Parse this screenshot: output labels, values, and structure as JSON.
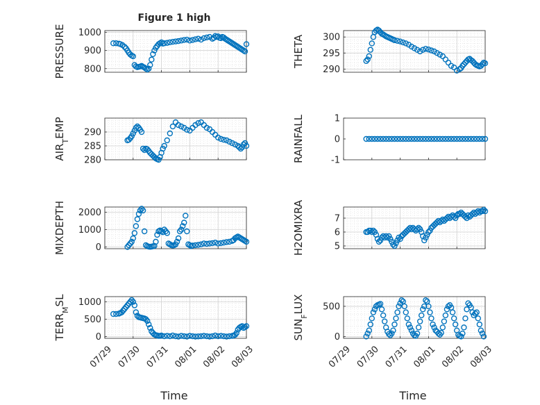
{
  "figure": {
    "title": "Figure 1 high",
    "xlabel": "Time",
    "marker_color": "#0072bd",
    "x_tick_labels": [
      "07/29",
      "07/30",
      "07/31",
      "08/01",
      "08/02",
      "08/03"
    ]
  },
  "chart_data": [
    {
      "type": "scatter",
      "ylabel": "PRESSURE",
      "ylim": [
        780,
        1010
      ],
      "yticks": [
        800,
        900,
        1000
      ],
      "xlim": [
        0,
        5
      ],
      "grid": true,
      "x": [
        0.3,
        0.4,
        0.5,
        0.55,
        0.62,
        0.7,
        0.75,
        0.8,
        0.85,
        0.9,
        0.95,
        1.0,
        1.05,
        1.1,
        1.15,
        1.2,
        1.25,
        1.3,
        1.35,
        1.4,
        1.45,
        1.5,
        1.55,
        1.6,
        1.65,
        1.7,
        1.75,
        1.8,
        1.85,
        1.9,
        1.95,
        2.0,
        2.05,
        2.1,
        2.2,
        2.3,
        2.4,
        2.5,
        2.6,
        2.7,
        2.8,
        2.9,
        3.0,
        3.1,
        3.2,
        3.3,
        3.4,
        3.5,
        3.6,
        3.7,
        3.8,
        3.85,
        3.9,
        3.95,
        4.0,
        4.05,
        4.1,
        4.15,
        4.2,
        4.25,
        4.3,
        4.35,
        4.4,
        4.45,
        4.5,
        4.55,
        4.6,
        4.65,
        4.7,
        4.75,
        4.8,
        4.85,
        4.9,
        4.95,
        5.0
      ],
      "y": [
        940,
        940,
        938,
        935,
        930,
        920,
        912,
        900,
        888,
        878,
        872,
        868,
        820,
        812,
        808,
        810,
        812,
        815,
        810,
        806,
        800,
        795,
        800,
        820,
        850,
        880,
        900,
        915,
        925,
        935,
        940,
        945,
        938,
        940,
        942,
        945,
        948,
        950,
        952,
        955,
        958,
        960,
        955,
        958,
        962,
        965,
        960,
        968,
        972,
        975,
        965,
        970,
        980,
        975,
        978,
        970,
        968,
        975,
        972,
        965,
        960,
        955,
        950,
        945,
        940,
        935,
        930,
        925,
        920,
        915,
        910,
        905,
        900,
        895,
        935
      ]
    },
    {
      "type": "scatter",
      "ylabel": "THETA",
      "ylim": [
        289,
        302
      ],
      "yticks": [
        290,
        295,
        300
      ],
      "xlim": [
        0,
        5
      ],
      "grid": true,
      "x": [
        0.8,
        0.85,
        0.9,
        0.95,
        1.0,
        1.05,
        1.1,
        1.15,
        1.2,
        1.25,
        1.3,
        1.35,
        1.4,
        1.45,
        1.5,
        1.55,
        1.6,
        1.65,
        1.7,
        1.75,
        1.8,
        1.9,
        2.0,
        2.1,
        2.2,
        2.3,
        2.4,
        2.5,
        2.6,
        2.7,
        2.8,
        2.9,
        3.0,
        3.1,
        3.2,
        3.3,
        3.4,
        3.5,
        3.6,
        3.7,
        3.8,
        3.9,
        4.0,
        4.1,
        4.15,
        4.2,
        4.25,
        4.3,
        4.35,
        4.4,
        4.45,
        4.5,
        4.55,
        4.6,
        4.65,
        4.7,
        4.75,
        4.8,
        4.85,
        4.9,
        4.95,
        5.0
      ],
      "y": [
        292.5,
        293,
        294,
        296,
        298,
        300,
        301.5,
        302,
        302.3,
        302,
        301.5,
        301,
        300.8,
        300.5,
        300.2,
        300,
        299.8,
        299.6,
        299.4,
        299.2,
        299,
        298.8,
        298.6,
        298.3,
        298,
        297.6,
        297,
        296.5,
        296,
        295.5,
        296,
        296.3,
        296.1,
        295.8,
        295.5,
        295,
        294.5,
        294,
        293,
        292,
        291,
        290.5,
        289.5,
        290,
        290.3,
        291,
        291.5,
        292,
        292.5,
        293,
        293.2,
        292.8,
        292.5,
        292,
        291.5,
        291.2,
        291,
        290.8,
        291,
        291.5,
        292,
        291.8
      ]
    },
    {
      "type": "scatter",
      "ylabel": "AIR_TEMP",
      "ylim": [
        280,
        295
      ],
      "yticks": [
        280,
        285,
        290
      ],
      "xlim": [
        0,
        5
      ],
      "grid": true,
      "x": [
        0.8,
        0.85,
        0.9,
        0.95,
        1.0,
        1.05,
        1.1,
        1.15,
        1.2,
        1.25,
        1.3,
        1.35,
        1.4,
        1.45,
        1.5,
        1.55,
        1.6,
        1.65,
        1.7,
        1.75,
        1.8,
        1.85,
        1.9,
        1.95,
        2.0,
        2.05,
        2.1,
        2.2,
        2.3,
        2.4,
        2.5,
        2.6,
        2.7,
        2.8,
        2.9,
        3.0,
        3.1,
        3.2,
        3.3,
        3.4,
        3.5,
        3.6,
        3.7,
        3.8,
        3.9,
        4.0,
        4.1,
        4.2,
        4.3,
        4.4,
        4.5,
        4.6,
        4.7,
        4.75,
        4.8,
        4.85,
        4.9,
        4.95,
        5.0
      ],
      "y": [
        287,
        287.2,
        287.8,
        288.5,
        289.5,
        290.5,
        291.5,
        292,
        291.5,
        290.8,
        290,
        284,
        283.5,
        284,
        283.8,
        283.2,
        282.5,
        282,
        281.5,
        281,
        280.5,
        280.2,
        280,
        281,
        282.5,
        284,
        285,
        287,
        289.5,
        292,
        293.5,
        292.5,
        292,
        291.5,
        290.8,
        290.5,
        291.5,
        292.5,
        293.2,
        293.5,
        292.5,
        291.5,
        291,
        290,
        289,
        288,
        287.5,
        287.2,
        287,
        286.5,
        286,
        285.5,
        285,
        284.5,
        284,
        284.5,
        285.5,
        286,
        285
      ]
    },
    {
      "type": "scatter",
      "ylabel": "RAINFALL",
      "ylim": [
        -1,
        1
      ],
      "yticks": [
        -1,
        0,
        1
      ],
      "xlim": [
        0,
        5
      ],
      "grid": false,
      "x": [
        0.8,
        0.9,
        1.0,
        1.1,
        1.2,
        1.3,
        1.4,
        1.5,
        1.6,
        1.7,
        1.8,
        1.9,
        2.0,
        2.1,
        2.2,
        2.3,
        2.4,
        2.5,
        2.6,
        2.7,
        2.8,
        2.9,
        3.0,
        3.1,
        3.2,
        3.3,
        3.4,
        3.5,
        3.6,
        3.7,
        3.8,
        3.9,
        4.0,
        4.1,
        4.2,
        4.3,
        4.4,
        4.5,
        4.6,
        4.7,
        4.8,
        4.9,
        5.0
      ],
      "y": [
        0,
        0,
        0,
        0,
        0,
        0,
        0,
        0,
        0,
        0,
        0,
        0,
        0,
        0,
        0,
        0,
        0,
        0,
        0,
        0,
        0,
        0,
        0,
        0,
        0,
        0,
        0,
        0,
        0,
        0,
        0,
        0,
        0,
        0,
        0,
        0,
        0,
        0,
        0,
        0,
        0,
        0,
        0
      ]
    },
    {
      "type": "scatter",
      "ylabel": "MIXDEPTH",
      "ylim": [
        -100,
        2300
      ],
      "yticks": [
        0,
        1000,
        2000
      ],
      "xlim": [
        0,
        5
      ],
      "grid": true,
      "x": [
        0.8,
        0.85,
        0.9,
        0.95,
        1.0,
        1.05,
        1.1,
        1.15,
        1.2,
        1.25,
        1.3,
        1.35,
        1.4,
        1.45,
        1.5,
        1.55,
        1.6,
        1.65,
        1.7,
        1.75,
        1.8,
        1.85,
        1.9,
        1.95,
        2.0,
        2.05,
        2.1,
        2.15,
        2.2,
        2.25,
        2.3,
        2.35,
        2.4,
        2.45,
        2.5,
        2.55,
        2.6,
        2.65,
        2.7,
        2.75,
        2.8,
        2.85,
        2.9,
        2.95,
        3.0,
        3.05,
        3.1,
        3.2,
        3.3,
        3.4,
        3.5,
        3.6,
        3.7,
        3.8,
        3.9,
        4.0,
        4.1,
        4.2,
        4.3,
        4.4,
        4.5,
        4.55,
        4.6,
        4.65,
        4.7,
        4.75,
        4.8,
        4.85,
        4.9,
        4.95,
        5.0
      ],
      "y": [
        0,
        100,
        200,
        300,
        500,
        800,
        1200,
        1600,
        1900,
        2100,
        2200,
        2100,
        900,
        100,
        50,
        20,
        10,
        20,
        40,
        60,
        300,
        700,
        900,
        950,
        900,
        850,
        1000,
        900,
        800,
        200,
        150,
        100,
        80,
        100,
        150,
        300,
        500,
        900,
        1000,
        1200,
        1400,
        1800,
        900,
        150,
        100,
        50,
        80,
        100,
        120,
        150,
        200,
        180,
        200,
        220,
        250,
        200,
        220,
        250,
        280,
        300,
        350,
        400,
        500,
        550,
        600,
        550,
        500,
        450,
        400,
        350,
        300
      ]
    },
    {
      "type": "scatter",
      "ylabel": "H2OMIXRA",
      "ylim": [
        4.8,
        7.8
      ],
      "yticks": [
        5,
        6,
        7
      ],
      "xlim": [
        0,
        5
      ],
      "grid": true,
      "x": [
        0.8,
        0.85,
        0.9,
        0.95,
        1.0,
        1.05,
        1.1,
        1.15,
        1.2,
        1.25,
        1.3,
        1.35,
        1.4,
        1.45,
        1.5,
        1.55,
        1.6,
        1.65,
        1.7,
        1.75,
        1.8,
        1.85,
        1.9,
        1.95,
        2.0,
        2.05,
        2.1,
        2.15,
        2.2,
        2.25,
        2.3,
        2.35,
        2.4,
        2.45,
        2.5,
        2.55,
        2.6,
        2.65,
        2.7,
        2.75,
        2.8,
        2.85,
        2.9,
        2.95,
        3.0,
        3.05,
        3.1,
        3.15,
        3.2,
        3.25,
        3.3,
        3.35,
        3.4,
        3.45,
        3.5,
        3.55,
        3.6,
        3.65,
        3.7,
        3.75,
        3.8,
        3.85,
        3.9,
        3.95,
        4.0,
        4.05,
        4.1,
        4.15,
        4.2,
        4.25,
        4.3,
        4.35,
        4.4,
        4.45,
        4.5,
        4.55,
        4.6,
        4.65,
        4.7,
        4.75,
        4.8,
        4.85,
        4.9,
        4.95,
        5.0
      ],
      "y": [
        6.0,
        6.0,
        6.1,
        6.1,
        6.0,
        6.1,
        6.0,
        5.8,
        5.5,
        5.3,
        5.4,
        5.6,
        5.7,
        5.6,
        5.7,
        5.6,
        5.7,
        5.5,
        5.3,
        5.1,
        5.0,
        5.2,
        5.4,
        5.6,
        5.5,
        5.7,
        5.8,
        5.9,
        6.0,
        6.1,
        6.2,
        6.3,
        6.2,
        6.3,
        6.2,
        6.1,
        6.2,
        6.3,
        6.2,
        6.0,
        5.7,
        5.4,
        5.6,
        5.8,
        6.0,
        6.1,
        6.3,
        6.4,
        6.5,
        6.6,
        6.7,
        6.8,
        6.7,
        6.8,
        6.9,
        6.8,
        6.9,
        7.0,
        7.1,
        7.0,
        7.1,
        7.2,
        7.1,
        7.0,
        7.2,
        7.3,
        7.3,
        7.4,
        7.3,
        7.2,
        7.1,
        7.0,
        7.2,
        7.1,
        7.2,
        7.3,
        7.4,
        7.3,
        7.4,
        7.5,
        7.4,
        7.5,
        7.5,
        7.6,
        7.5
      ]
    },
    {
      "type": "scatter",
      "ylabel": "TERR_MSL",
      "ylim": [
        -50,
        1150
      ],
      "yticks": [
        0,
        500,
        1000
      ],
      "xlim": [
        0,
        5
      ],
      "grid": true,
      "x": [
        0.3,
        0.4,
        0.5,
        0.55,
        0.6,
        0.65,
        0.7,
        0.75,
        0.8,
        0.85,
        0.9,
        0.95,
        1.0,
        1.05,
        1.1,
        1.15,
        1.2,
        1.25,
        1.3,
        1.35,
        1.4,
        1.45,
        1.5,
        1.55,
        1.6,
        1.65,
        1.7,
        1.75,
        1.8,
        1.85,
        1.9,
        1.95,
        2.0,
        2.1,
        2.2,
        2.3,
        2.4,
        2.5,
        2.6,
        2.7,
        2.8,
        2.9,
        3.0,
        3.1,
        3.2,
        3.3,
        3.4,
        3.5,
        3.6,
        3.7,
        3.8,
        3.9,
        4.0,
        4.1,
        4.2,
        4.3,
        4.4,
        4.5,
        4.55,
        4.6,
        4.65,
        4.7,
        4.75,
        4.8,
        4.85,
        4.9,
        4.95,
        5.0
      ],
      "y": [
        650,
        650,
        660,
        680,
        700,
        750,
        800,
        850,
        900,
        950,
        1000,
        1050,
        1000,
        900,
        700,
        600,
        560,
        550,
        540,
        530,
        520,
        500,
        450,
        350,
        250,
        150,
        100,
        60,
        40,
        30,
        20,
        20,
        30,
        10,
        20,
        10,
        30,
        10,
        0,
        20,
        10,
        0,
        20,
        10,
        0,
        5,
        10,
        20,
        10,
        0,
        10,
        30,
        10,
        20,
        10,
        0,
        10,
        20,
        30,
        50,
        100,
        200,
        250,
        280,
        300,
        250,
        270,
        300
      ]
    },
    {
      "type": "scatter",
      "ylabel": "SUN_FLUX",
      "ylim": [
        -30,
        660
      ],
      "yticks": [
        0,
        500
      ],
      "xlim": [
        0,
        5
      ],
      "grid": true,
      "x": [
        0.8,
        0.85,
        0.9,
        0.95,
        1.0,
        1.05,
        1.1,
        1.15,
        1.2,
        1.25,
        1.3,
        1.35,
        1.4,
        1.45,
        1.5,
        1.55,
        1.6,
        1.65,
        1.7,
        1.75,
        1.8,
        1.85,
        1.9,
        1.95,
        2.0,
        2.05,
        2.1,
        2.15,
        2.2,
        2.25,
        2.3,
        2.35,
        2.4,
        2.45,
        2.5,
        2.55,
        2.6,
        2.65,
        2.7,
        2.75,
        2.8,
        2.85,
        2.9,
        2.95,
        3.0,
        3.05,
        3.1,
        3.15,
        3.2,
        3.25,
        3.3,
        3.35,
        3.4,
        3.45,
        3.5,
        3.55,
        3.6,
        3.65,
        3.7,
        3.75,
        3.8,
        3.85,
        3.9,
        3.95,
        4.0,
        4.05,
        4.1,
        4.15,
        4.2,
        4.25,
        4.3,
        4.35,
        4.4,
        4.45,
        4.5,
        4.55,
        4.6,
        4.65,
        4.7,
        4.75,
        4.8,
        4.85,
        4.9,
        4.95
      ],
      "y": [
        0,
        50,
        100,
        200,
        300,
        400,
        450,
        500,
        520,
        530,
        540,
        450,
        350,
        250,
        150,
        80,
        40,
        20,
        50,
        100,
        200,
        300,
        400,
        500,
        550,
        600,
        580,
        500,
        400,
        300,
        200,
        150,
        100,
        50,
        20,
        10,
        50,
        150,
        250,
        350,
        450,
        500,
        600,
        580,
        500,
        400,
        300,
        200,
        150,
        100,
        80,
        50,
        30,
        60,
        150,
        250,
        350,
        450,
        500,
        520,
        480,
        400,
        300,
        200,
        100,
        30,
        10,
        0,
        50,
        150,
        300,
        450,
        550,
        520,
        480,
        400,
        350,
        380,
        400,
        300,
        200,
        100,
        50,
        0
      ]
    }
  ]
}
